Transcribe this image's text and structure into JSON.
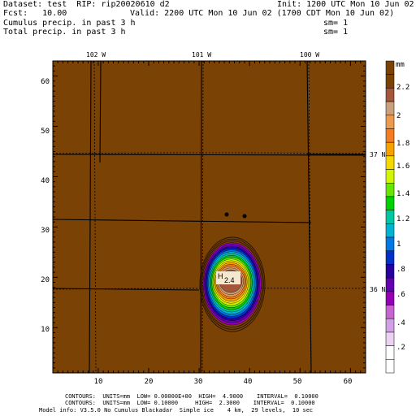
{
  "header": {
    "dataset": "Dataset: test  RIP: rip20020610 d2",
    "init": "Init: 1200 UTC Mon 10 Jun 02",
    "fcst": "Fcst:   10.00",
    "valid": "Valid: 2200 UTC Mon 10 Jun 02 (1700 CDT Mon 10 Jun 02)",
    "field1": "Cumulus precip. in past 3 h",
    "field2": "Total precip. in past 3 h",
    "sm1": "sm= 1",
    "sm2": "sm= 1"
  },
  "map": {
    "background_color": "#7a4205",
    "x_ticks": [
      "10",
      "20",
      "30",
      "40",
      "50",
      "60"
    ],
    "y_ticks": [
      "10",
      "20",
      "30",
      "40",
      "50",
      "60"
    ],
    "longitude_labels": [
      "102 W",
      "101 W",
      "100 W"
    ],
    "latitude_labels": [
      "37 N",
      "36 N"
    ],
    "storm_label": "H",
    "storm_value": "2.4"
  },
  "colorbar": {
    "unit": "mm",
    "labels": [
      "2.2",
      "2",
      "1.8",
      "1.6",
      "1.4",
      "1.2",
      "1",
      ".8",
      ".6",
      ".4",
      ".2"
    ],
    "colors": [
      "#7a4205",
      "#7a4205",
      "#a3563a",
      "#c9a27d",
      "#ee9a4d",
      "#f57c20",
      "#f5a200",
      "#f5d800",
      "#d2f500",
      "#66e600",
      "#00d200",
      "#00c8a0",
      "#00b4d2",
      "#0078e6",
      "#0032c8",
      "#2800a0",
      "#6400b4",
      "#9600b4",
      "#c864d2",
      "#d2a0e6",
      "#ebd2f0",
      "#ffffff",
      "#ffffff"
    ]
  },
  "footer": {
    "line1": "CONTOURS:  UNITS=mm  LOW= 0.00000E+00  HIGH=  4.9000    INTERVAL=  0.10000",
    "line2": "CONTOURS:  UNITS=mm  LOW= 0.10000     HIGH=  2.3000    INTERVAL=  0.10000",
    "line3": "Model info: V3.5.0 No Cumulus Blackadar  Simple ice    4 km,  29 levels,  10 sec"
  }
}
